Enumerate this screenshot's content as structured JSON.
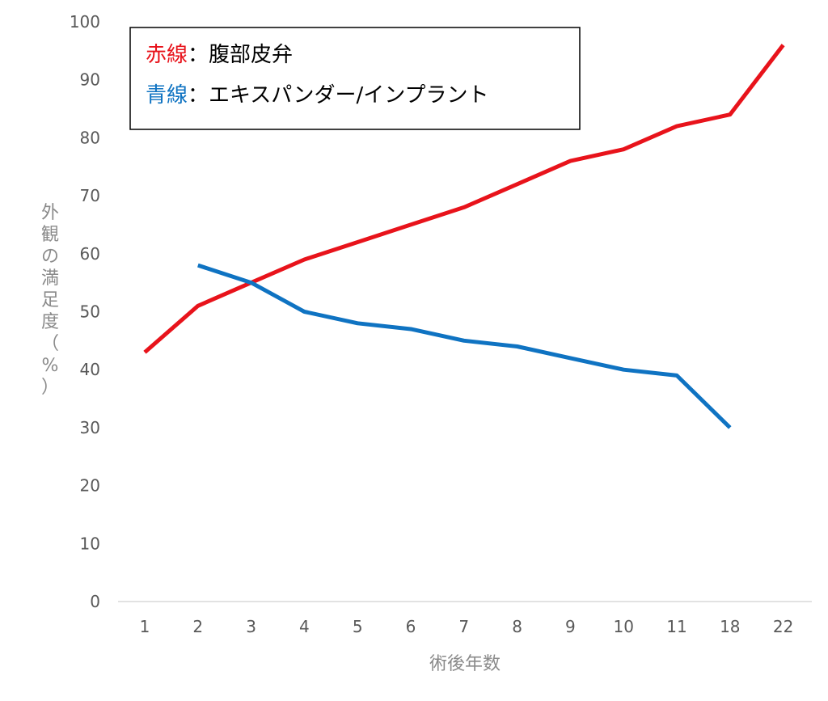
{
  "chart_data": {
    "type": "line",
    "title": "",
    "xlabel": "術後年数",
    "ylabel": "外観の満足度（%）",
    "categories": [
      "1",
      "2",
      "3",
      "4",
      "5",
      "6",
      "7",
      "8",
      "9",
      "10",
      "11",
      "18",
      "22"
    ],
    "ylim": [
      0,
      100
    ],
    "yticks": [
      0,
      10,
      20,
      30,
      40,
      50,
      60,
      70,
      80,
      90,
      100
    ],
    "grid": false,
    "legend_position": "top-left",
    "series": [
      {
        "name": "腹部皮弁",
        "legend_prefix": "赤線",
        "color": "#e8131b",
        "values": [
          43,
          51,
          55,
          59,
          62,
          65,
          68,
          72,
          76,
          78,
          82,
          84,
          96
        ]
      },
      {
        "name": "エキスパンダー/インプラント",
        "legend_prefix": "青線",
        "color": "#0f73c2",
        "values": [
          null,
          58,
          55,
          50,
          48,
          47,
          45,
          44,
          42,
          40,
          39,
          30,
          null
        ]
      }
    ]
  },
  "legend": {
    "separator": "："
  }
}
